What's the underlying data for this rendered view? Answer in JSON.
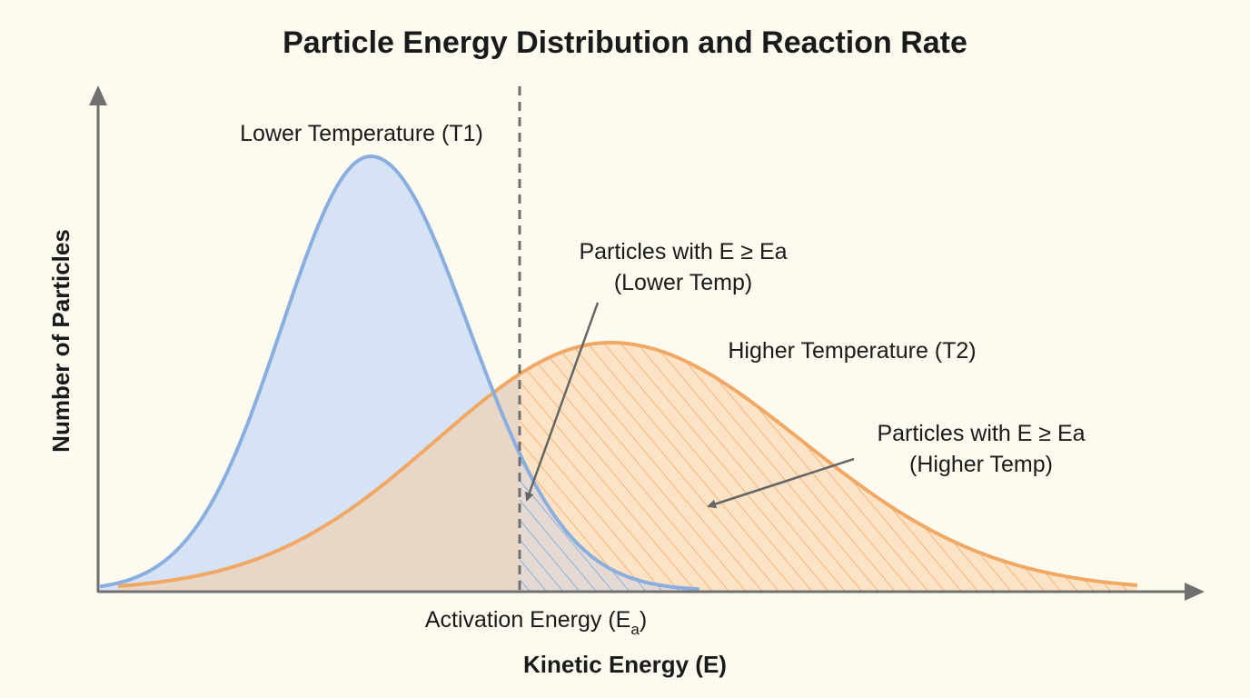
{
  "title": "Particle Energy Distribution and Reaction Rate",
  "y_axis_label": "Number of Particles",
  "x_axis_label": "Kinetic Energy (E)",
  "activation_label": {
    "main": "Activation Energy (E",
    "sub": "a",
    "close": ")"
  },
  "curves": {
    "lower": {
      "label": "Lower Temperature (T1)",
      "color": "#8aaede",
      "fill": "#d5e3f4"
    },
    "higher": {
      "label": "Higher Temperature (T2)",
      "color": "#f0a864",
      "fill": "#fde3c6"
    }
  },
  "annotations": {
    "lower": {
      "line1": "Particles with E ≥ Ea",
      "line2": "(Lower Temp)"
    },
    "higher": {
      "line1": "Particles with E ≥ Ea",
      "line2": "(Higher Temp)"
    }
  },
  "colors": {
    "background": "#fdfbf0",
    "axis": "#707070",
    "overlap": "#e8d6c7",
    "arrow": "#666666"
  }
}
